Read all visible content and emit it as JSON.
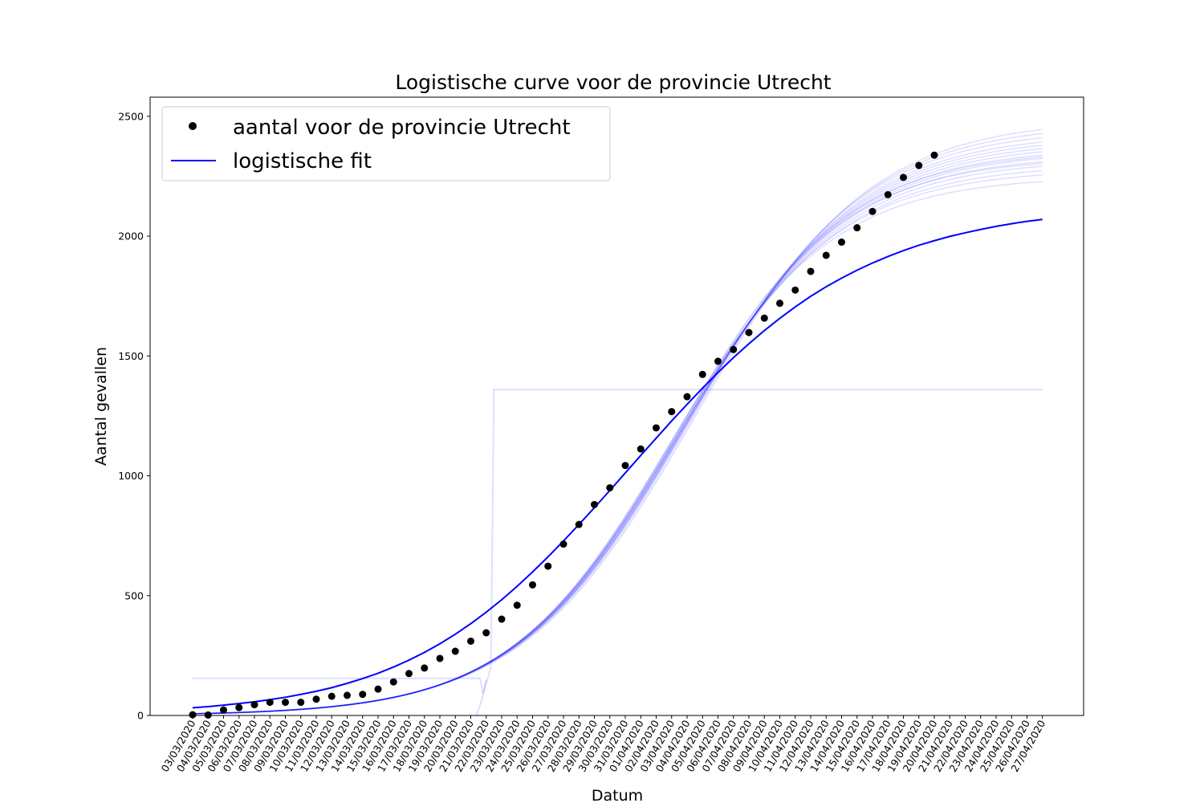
{
  "chart_data": {
    "type": "scatter",
    "title": "Logistische curve voor de provincie Utrecht",
    "xlabel": "Datum",
    "ylabel": "Aantal gevallen",
    "ylim": [
      0,
      2580
    ],
    "yticks": [
      0,
      500,
      1000,
      1500,
      2000,
      2500
    ],
    "legend_position": "top-left",
    "grid": false,
    "colors": {
      "data": "#000000",
      "fit": "#0000ff",
      "bootstrap": "#0000ff"
    },
    "dates": [
      "03/03/2020",
      "04/03/2020",
      "05/03/2020",
      "06/03/2020",
      "07/03/2020",
      "08/03/2020",
      "09/03/2020",
      "10/03/2020",
      "11/03/2020",
      "12/03/2020",
      "13/03/2020",
      "14/03/2020",
      "15/03/2020",
      "16/03/2020",
      "17/03/2020",
      "18/03/2020",
      "19/03/2020",
      "20/03/2020",
      "21/03/2020",
      "22/03/2020",
      "23/03/2020",
      "24/03/2020",
      "25/03/2020",
      "26/03/2020",
      "27/03/2020",
      "28/03/2020",
      "29/03/2020",
      "30/03/2020",
      "31/03/2020",
      "01/04/2020",
      "02/04/2020",
      "03/04/2020",
      "04/04/2020",
      "05/04/2020",
      "06/04/2020",
      "07/04/2020",
      "08/04/2020",
      "09/04/2020",
      "10/04/2020",
      "11/04/2020",
      "12/04/2020",
      "13/04/2020",
      "14/04/2020",
      "15/04/2020",
      "16/04/2020",
      "17/04/2020",
      "18/04/2020",
      "19/04/2020",
      "20/04/2020",
      "21/04/2020",
      "22/04/2020",
      "23/04/2020",
      "24/04/2020",
      "25/04/2020",
      "26/04/2020",
      "27/04/2020"
    ],
    "series": [
      {
        "name": "aantal voor de provincie Utrecht",
        "kind": "scatter",
        "values": [
          3,
          2,
          23,
          33,
          45,
          55,
          55,
          55,
          68,
          80,
          84,
          88,
          110,
          140,
          175,
          198,
          238,
          268,
          310,
          345,
          402,
          460,
          545,
          623,
          715,
          797,
          880,
          950,
          1043,
          1112,
          1200,
          1268,
          1330,
          1423,
          1478,
          1527,
          1598,
          1658,
          1720,
          1775,
          1853,
          1920,
          1975,
          2035,
          2103,
          2173,
          2245,
          2295,
          2338
        ]
      },
      {
        "name": "logistische fit",
        "kind": "line",
        "values": [
          32,
          37,
          43,
          50,
          57,
          66,
          76,
          88,
          101,
          116,
          134,
          154,
          176,
          202,
          231,
          263,
          299,
          339,
          383,
          431,
          483,
          539,
          599,
          662,
          728,
          797,
          867,
          939,
          1012,
          1085,
          1157,
          1229,
          1298,
          1366,
          1431,
          1493,
          1551,
          1606,
          1657,
          1705,
          1749,
          1789,
          1825,
          1858,
          1888,
          1915,
          1940,
          1962,
          1981,
          1999,
          2014,
          2028,
          2041,
          2052,
          2062,
          2070
        ]
      }
    ],
    "bootstrap_curves": [
      {
        "k": 2250,
        "x0": 30.8,
        "r": 0.19
      },
      {
        "k": 2280,
        "x0": 31.0,
        "r": 0.188
      },
      {
        "k": 2300,
        "x0": 31.2,
        "r": 0.1865
      },
      {
        "k": 2320,
        "x0": 31.3,
        "r": 0.1855
      },
      {
        "k": 2340,
        "x0": 31.4,
        "r": 0.1845
      },
      {
        "k": 2355,
        "x0": 31.5,
        "r": 0.184
      },
      {
        "k": 2370,
        "x0": 31.6,
        "r": 0.1835
      },
      {
        "k": 2385,
        "x0": 31.7,
        "r": 0.1828
      },
      {
        "k": 2400,
        "x0": 31.8,
        "r": 0.1822
      },
      {
        "k": 2415,
        "x0": 31.9,
        "r": 0.1815
      },
      {
        "k": 2430,
        "x0": 32.0,
        "r": 0.1808
      },
      {
        "k": 2450,
        "x0": 32.1,
        "r": 0.18
      },
      {
        "k": 2470,
        "x0": 32.3,
        "r": 0.179
      },
      {
        "k": 2490,
        "x0": 32.5,
        "r": 0.178
      },
      {
        "k": 2330,
        "x0": 31.2,
        "r": 0.187
      },
      {
        "k": 2360,
        "x0": 31.4,
        "r": 0.185
      }
    ],
    "outlier_curve": {
      "low": 155,
      "high": 1360
    }
  }
}
